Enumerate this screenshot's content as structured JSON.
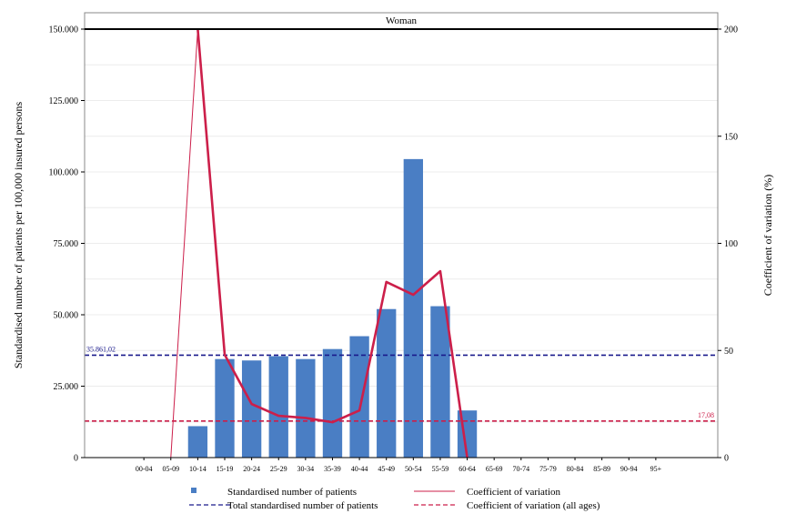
{
  "chart_data": {
    "type": "bar",
    "panel_title": "Woman",
    "categories": [
      "00-04",
      "05-09",
      "10-14",
      "15-19",
      "20-24",
      "25-29",
      "30-34",
      "35-39",
      "40-44",
      "45-49",
      "50-54",
      "55-59",
      "60-64",
      "65-69",
      "70-74",
      "75-79",
      "80-84",
      "85-89",
      "90-94",
      "95+"
    ],
    "ylabel": "Standardised number of patients per 100,000 insured persons",
    "y2label": "Coefficient of variation (%)",
    "ylim": [
      0,
      150000
    ],
    "y2lim": [
      0,
      200
    ],
    "yticks": [
      0,
      25000,
      50000,
      75000,
      100000,
      125000,
      150000
    ],
    "ytick_labels": [
      "0",
      "25.000",
      "50.000",
      "75.000",
      "100.000",
      "125.000",
      "150.000"
    ],
    "y2ticks": [
      0,
      50,
      100,
      150,
      200
    ],
    "y2tick_labels": [
      "0",
      "50",
      "100",
      "150",
      "200"
    ],
    "grid": true,
    "series": [
      {
        "name": "Standardised number of patients",
        "kind": "bar",
        "axis": "left",
        "color": "#4a7ec4",
        "values": [
          0,
          0,
          11000,
          34500,
          34000,
          35500,
          34500,
          38000,
          42500,
          52000,
          104500,
          53000,
          16500,
          0,
          0,
          0,
          0,
          0,
          0,
          0
        ]
      },
      {
        "name": "Coefficient of variation",
        "kind": "line",
        "axis": "right",
        "color": "#cc1f4a",
        "thin_segments": [
          [
            -5,
            0
          ],
          [
            200,
            200
          ]
        ],
        "thin_from": "05-09",
        "values": [
          null,
          null,
          200,
          48,
          25,
          19.5,
          18.5,
          16.5,
          22,
          82,
          76,
          87,
          0,
          null,
          null,
          null,
          null,
          null,
          null,
          null
        ]
      }
    ],
    "reference_lines": [
      {
        "name": "Total standardised number of patients",
        "axis": "left",
        "value": 35861.02,
        "label": "35.861,02",
        "color": "#1a1a8c",
        "label_position": "left"
      },
      {
        "name": "Coefficient of variation (all ages)",
        "axis": "right",
        "value": 17.08,
        "label": "17,08",
        "color": "#cc1f4a",
        "label_position": "right"
      }
    ],
    "legend": {
      "placement": "bottom",
      "entries": [
        {
          "label": "Standardised number of patients",
          "symbol": "square",
          "color": "#4a7ec4"
        },
        {
          "label": "Coefficient of variation",
          "symbol": "line",
          "color": "#cc1f4a"
        },
        {
          "label": "Total standardised number of patients",
          "symbol": "dashed",
          "color": "#1a1a8c"
        },
        {
          "label": "Coefficient of variation (all ages)",
          "symbol": "dashed",
          "color": "#cc1f4a"
        }
      ]
    }
  }
}
